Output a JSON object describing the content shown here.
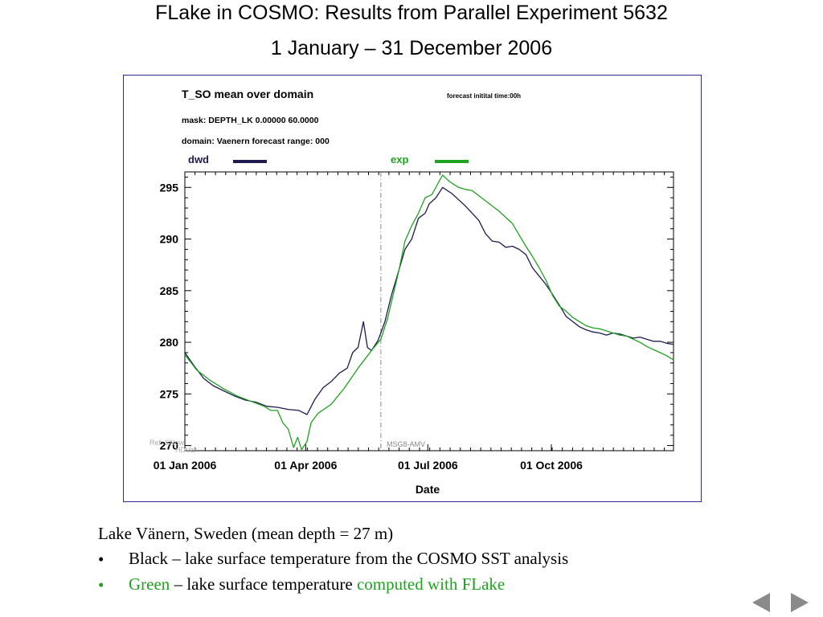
{
  "slide": {
    "title_line1": "FLake in COSMO: Results from Parallel Experiment 5632",
    "title_line2": "1 January – 31 December 2006"
  },
  "panel": {
    "header_title": "T_SO  mean over domain",
    "mask": "mask: DEPTH_LK 0.00000 60.0000",
    "domain": "domain: Vaenern   forecast range: 000",
    "forecast_time": "forecast initital time:00h",
    "annotation_left_1": "Ref: SNow",
    "annotation_left_2": "HDVar",
    "annotation_mid": "MSG8-AMV"
  },
  "caption": {
    "line1": "Lake Vänern, Sweden (mean depth = 27 m)",
    "bullet_symbol": "•",
    "item1_text": "Black – lake  surface temperature from the COSMO SST analysis",
    "item2_green1": "Green",
    "item2_mid": " – lake surface temperature ",
    "item2_green2": "computed with FLake"
  },
  "nav": {
    "prev_icon": "triangle-left-icon",
    "next_icon": "triangle-right-icon"
  },
  "colors": {
    "dwd": "#1c1c50",
    "exp": "#1fa21f",
    "frame": "#2a2a90",
    "nav": "#8a8a8a"
  },
  "chart_data": {
    "type": "line",
    "xlabel": "Date",
    "ylabel": "",
    "x_unit": "day of year 2006",
    "xlim": [
      1,
      365
    ],
    "ylim": [
      269.5,
      296.5
    ],
    "yticks": [
      270,
      275,
      280,
      285,
      290,
      295
    ],
    "xtick_labels": [
      {
        "day": 1,
        "label": "01 Jan 2006"
      },
      {
        "day": 91,
        "label": "01 Apr 2006"
      },
      {
        "day": 182,
        "label": "01 Jul 2006"
      },
      {
        "day": 274,
        "label": "01 Oct 2006"
      }
    ],
    "vline_day": 147,
    "legend": "top",
    "series": [
      {
        "name": "dwd",
        "color": "#1c1c50",
        "points": [
          [
            1,
            279
          ],
          [
            8,
            277.7
          ],
          [
            15,
            276.5
          ],
          [
            22,
            275.8
          ],
          [
            30,
            275.3
          ],
          [
            38,
            274.8
          ],
          [
            46,
            274.4
          ],
          [
            54,
            274.2
          ],
          [
            62,
            273.8
          ],
          [
            70,
            273.7
          ],
          [
            78,
            273.5
          ],
          [
            86,
            273.4
          ],
          [
            92,
            273
          ],
          [
            98,
            274.5
          ],
          [
            104,
            275.6
          ],
          [
            110,
            276.2
          ],
          [
            116,
            277
          ],
          [
            122,
            277.5
          ],
          [
            126,
            279
          ],
          [
            130,
            279.5
          ],
          [
            134,
            282
          ],
          [
            137,
            279.5
          ],
          [
            140,
            279.2
          ],
          [
            145,
            280.2
          ],
          [
            150,
            282
          ],
          [
            155,
            284.6
          ],
          [
            160,
            286.8
          ],
          [
            165,
            289
          ],
          [
            170,
            290
          ],
          [
            175,
            292
          ],
          [
            180,
            292.5
          ],
          [
            183,
            293.4
          ],
          [
            188,
            294
          ],
          [
            193,
            295
          ],
          [
            200,
            294.4
          ],
          [
            205,
            293.8
          ],
          [
            210,
            293.2
          ],
          [
            215,
            292.5
          ],
          [
            220,
            291.8
          ],
          [
            225,
            290.5
          ],
          [
            230,
            289.8
          ],
          [
            235,
            289.7
          ],
          [
            240,
            289.2
          ],
          [
            245,
            289.3
          ],
          [
            250,
            289
          ],
          [
            255,
            288.5
          ],
          [
            260,
            287.2
          ],
          [
            265,
            286.4
          ],
          [
            270,
            285.6
          ],
          [
            275,
            284.6
          ],
          [
            280,
            283.6
          ],
          [
            285,
            282.5
          ],
          [
            290,
            282
          ],
          [
            295,
            281.5
          ],
          [
            300,
            281.2
          ],
          [
            305,
            281
          ],
          [
            310,
            280.9
          ],
          [
            315,
            280.7
          ],
          [
            320,
            280.9
          ],
          [
            325,
            280.8
          ],
          [
            330,
            280.6
          ],
          [
            335,
            280.4
          ],
          [
            340,
            280.5
          ],
          [
            345,
            280.3
          ],
          [
            350,
            280.1
          ],
          [
            355,
            280.1
          ],
          [
            360,
            279.9
          ],
          [
            365,
            279.8
          ]
        ]
      },
      {
        "name": "exp",
        "color": "#1fa21f",
        "points": [
          [
            1,
            278.8
          ],
          [
            10,
            277.3
          ],
          [
            20,
            276.3
          ],
          [
            30,
            275.5
          ],
          [
            40,
            274.8
          ],
          [
            50,
            274.3
          ],
          [
            60,
            273.8
          ],
          [
            65,
            273.4
          ],
          [
            70,
            273.4
          ],
          [
            74,
            272.2
          ],
          [
            78,
            271.6
          ],
          [
            82,
            269.8
          ],
          [
            85,
            270.8
          ],
          [
            88,
            269.6
          ],
          [
            92,
            270.4
          ],
          [
            95,
            272.2
          ],
          [
            100,
            273.1
          ],
          [
            110,
            274
          ],
          [
            120,
            275.6
          ],
          [
            130,
            277.5
          ],
          [
            140,
            279.2
          ],
          [
            147,
            280.3
          ],
          [
            152,
            282.3
          ],
          [
            156,
            284.5
          ],
          [
            160,
            286.7
          ],
          [
            165,
            289.8
          ],
          [
            170,
            291.3
          ],
          [
            175,
            292.5
          ],
          [
            180,
            294
          ],
          [
            185,
            294.3
          ],
          [
            190,
            295.5
          ],
          [
            193,
            296.2
          ],
          [
            197,
            295.7
          ],
          [
            200,
            295.4
          ],
          [
            205,
            295
          ],
          [
            210,
            294.8
          ],
          [
            215,
            294.7
          ],
          [
            220,
            294.2
          ],
          [
            225,
            293.7
          ],
          [
            230,
            293.2
          ],
          [
            235,
            292.7
          ],
          [
            240,
            292.1
          ],
          [
            245,
            291.5
          ],
          [
            250,
            290.4
          ],
          [
            255,
            289.3
          ],
          [
            260,
            288.3
          ],
          [
            265,
            287.2
          ],
          [
            270,
            286
          ],
          [
            275,
            284.5
          ],
          [
            280,
            283.5
          ],
          [
            285,
            283
          ],
          [
            290,
            282.4
          ],
          [
            295,
            282
          ],
          [
            300,
            281.6
          ],
          [
            305,
            281.4
          ],
          [
            310,
            281.3
          ],
          [
            315,
            281.1
          ],
          [
            320,
            280.9
          ],
          [
            325,
            280.7
          ],
          [
            330,
            280.6
          ],
          [
            335,
            280.3
          ],
          [
            340,
            280
          ],
          [
            345,
            279.6
          ],
          [
            350,
            279.3
          ],
          [
            355,
            279
          ],
          [
            360,
            278.7
          ],
          [
            365,
            278.3
          ]
        ]
      }
    ]
  }
}
